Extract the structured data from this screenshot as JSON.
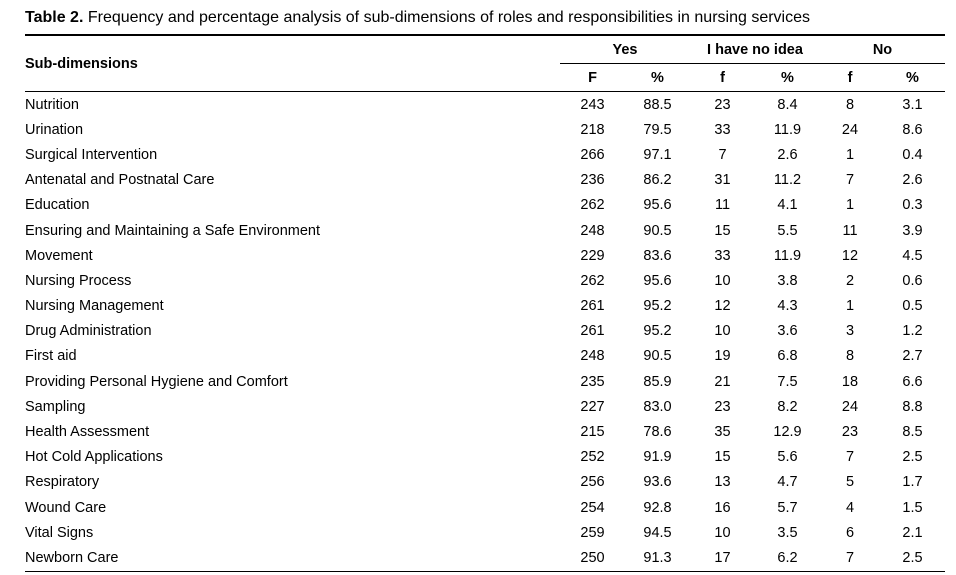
{
  "caption": {
    "label": "Table 2.",
    "text": " Frequency and percentage analysis of sub-dimensions of roles and responsibilities in nursing services"
  },
  "table": {
    "header": {
      "sub_dimensions": "Sub-dimensions",
      "groups": [
        "Yes",
        "I have no idea",
        "No"
      ],
      "subheaders": [
        "F",
        "%",
        "f",
        "%",
        "f",
        "%"
      ]
    },
    "rows": [
      {
        "name": "Nutrition",
        "cells": [
          "243",
          "88.5",
          "23",
          "8.4",
          "8",
          "3.1"
        ]
      },
      {
        "name": "Urination",
        "cells": [
          "218",
          "79.5",
          "33",
          "11.9",
          "24",
          "8.6"
        ]
      },
      {
        "name": "Surgical Intervention",
        "cells": [
          "266",
          "97.1",
          "7",
          "2.6",
          "1",
          "0.4"
        ]
      },
      {
        "name": "Antenatal and Postnatal Care",
        "cells": [
          "236",
          "86.2",
          "31",
          "11.2",
          "7",
          "2.6"
        ]
      },
      {
        "name": "Education",
        "cells": [
          "262",
          "95.6",
          "11",
          "4.1",
          "1",
          "0.3"
        ]
      },
      {
        "name": "Ensuring and Maintaining a Safe Environment",
        "cells": [
          "248",
          "90.5",
          "15",
          "5.5",
          "11",
          "3.9"
        ]
      },
      {
        "name": "Movement",
        "cells": [
          "229",
          "83.6",
          "33",
          "11.9",
          "12",
          "4.5"
        ]
      },
      {
        "name": "Nursing Process",
        "cells": [
          "262",
          "95.6",
          "10",
          "3.8",
          "2",
          "0.6"
        ]
      },
      {
        "name": "Nursing Management",
        "cells": [
          "261",
          "95.2",
          "12",
          "4.3",
          "1",
          "0.5"
        ]
      },
      {
        "name": "Drug Administration",
        "cells": [
          "261",
          "95.2",
          "10",
          "3.6",
          "3",
          "1.2"
        ]
      },
      {
        "name": "First aid",
        "cells": [
          "248",
          "90.5",
          "19",
          "6.8",
          "8",
          "2.7"
        ]
      },
      {
        "name": "Providing Personal Hygiene and Comfort",
        "cells": [
          "235",
          "85.9",
          "21",
          "7.5",
          "18",
          "6.6"
        ]
      },
      {
        "name": "Sampling",
        "cells": [
          "227",
          "83.0",
          "23",
          "8.2",
          "24",
          "8.8"
        ]
      },
      {
        "name": "Health Assessment",
        "cells": [
          "215",
          "78.6",
          "35",
          "12.9",
          "23",
          "8.5"
        ]
      },
      {
        "name": "Hot Cold Applications",
        "cells": [
          "252",
          "91.9",
          "15",
          "5.6",
          "7",
          "2.5"
        ]
      },
      {
        "name": "Respiratory",
        "cells": [
          "256",
          "93.6",
          "13",
          "4.7",
          "5",
          "1.7"
        ]
      },
      {
        "name": "Wound Care",
        "cells": [
          "254",
          "92.8",
          "16",
          "5.7",
          "4",
          "1.5"
        ]
      },
      {
        "name": "Vital Signs",
        "cells": [
          "259",
          "94.5",
          "10",
          "3.5",
          "6",
          "2.1"
        ]
      },
      {
        "name": "Newborn Care",
        "cells": [
          "250",
          "91.3",
          "17",
          "6.2",
          "7",
          "2.5"
        ]
      }
    ]
  }
}
